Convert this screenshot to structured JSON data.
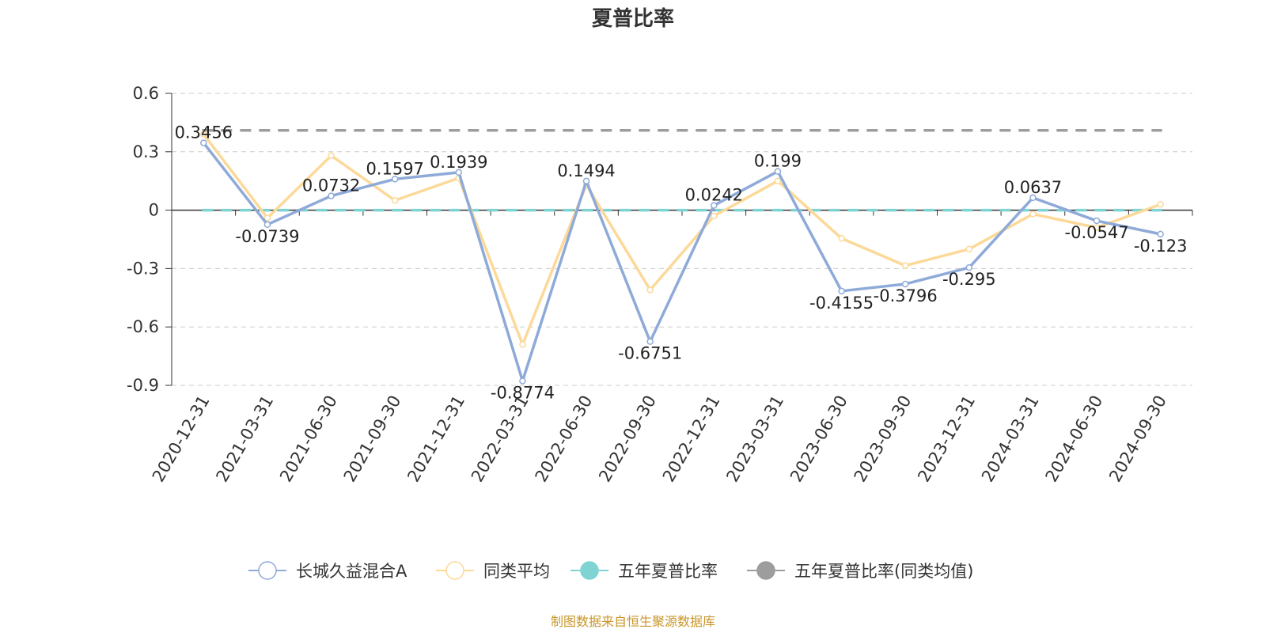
{
  "chart_data": {
    "type": "line",
    "title": "夏普比率",
    "categories": [
      "2020-12-31",
      "2021-03-31",
      "2021-06-30",
      "2021-09-30",
      "2021-12-31",
      "2022-03-31",
      "2022-06-30",
      "2022-09-30",
      "2022-12-31",
      "2023-03-31",
      "2023-06-30",
      "2023-09-30",
      "2023-12-31",
      "2024-03-31",
      "2024-06-30",
      "2024-09-30"
    ],
    "ylim": [
      -0.9,
      0.6
    ],
    "yticks": [
      "0.6",
      "0.3",
      "0",
      "-0.3",
      "-0.6",
      "-0.9"
    ],
    "grid": true,
    "legend_position": "bottom",
    "series": [
      {
        "name": "长城久益混合A",
        "color": "#8eaad8",
        "values": [
          0.3456,
          -0.0739,
          0.0732,
          0.1597,
          0.1939,
          -0.8774,
          0.1494,
          -0.6751,
          0.0242,
          0.199,
          -0.4155,
          -0.3796,
          -0.295,
          0.0637,
          -0.0547,
          -0.123
        ],
        "labels": [
          "0.3456",
          "-0.0739",
          "0.0732",
          "0.1597",
          "0.1939",
          "-0.8774",
          "0.1494",
          "-0.6751",
          "0.0242",
          "0.199",
          "-0.4155",
          "-0.3796",
          "-0.295",
          "0.0637",
          "-0.0547",
          "-0.123"
        ]
      },
      {
        "name": "同类平均",
        "color": "#fcd999",
        "values": [
          0.39,
          -0.04,
          0.28,
          0.05,
          0.165,
          -0.69,
          0.13,
          -0.41,
          -0.03,
          0.15,
          -0.145,
          -0.285,
          -0.2,
          -0.02,
          -0.09,
          0.03
        ]
      },
      {
        "name": "五年夏普比率",
        "color": "#7fd3d3",
        "value": 0.0,
        "dashed": true
      },
      {
        "name": "五年夏普比率(同类均值)",
        "color": "#9d9d9d",
        "value": 0.41,
        "dashed": true
      }
    ]
  },
  "source_text": "制图数据来自恒生聚源数据库"
}
